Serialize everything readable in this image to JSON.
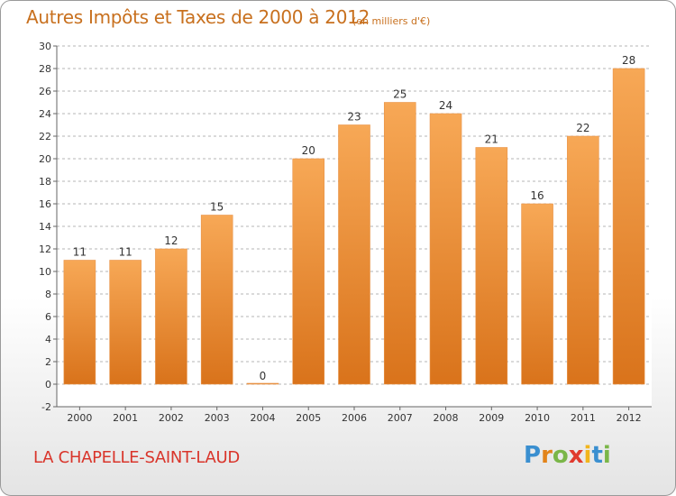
{
  "title": "Autres Impôts et Taxes de 2000 à 2012",
  "subtitle": "(en milliers d'€)",
  "city": "LA CHAPELLE-SAINT-LAUD",
  "logo": {
    "letters": [
      "P",
      "r",
      "o",
      "x",
      "i",
      "t",
      "i"
    ],
    "colors": [
      "#3a8fd0",
      "#e2841a",
      "#7ab648",
      "#e03a2e",
      "#f2b51c",
      "#3a8fd0",
      "#7ab648"
    ]
  },
  "colors": {
    "bar_top": "#f7a856",
    "bar_bottom": "#d9731b",
    "text": "#333333",
    "grid": "#b5b5b5"
  },
  "chart_data": {
    "type": "bar",
    "categories": [
      "2000",
      "2001",
      "2002",
      "2003",
      "2004",
      "2005",
      "2006",
      "2007",
      "2008",
      "2009",
      "2010",
      "2011",
      "2012"
    ],
    "values": [
      11,
      11,
      12,
      15,
      0,
      20,
      23,
      25,
      24,
      21,
      16,
      22,
      28
    ],
    "y_ticks": [
      -2,
      0,
      2,
      4,
      6,
      8,
      10,
      12,
      14,
      16,
      18,
      20,
      22,
      24,
      26,
      28,
      30
    ],
    "ylim": [
      -2,
      30
    ],
    "grid": true
  }
}
